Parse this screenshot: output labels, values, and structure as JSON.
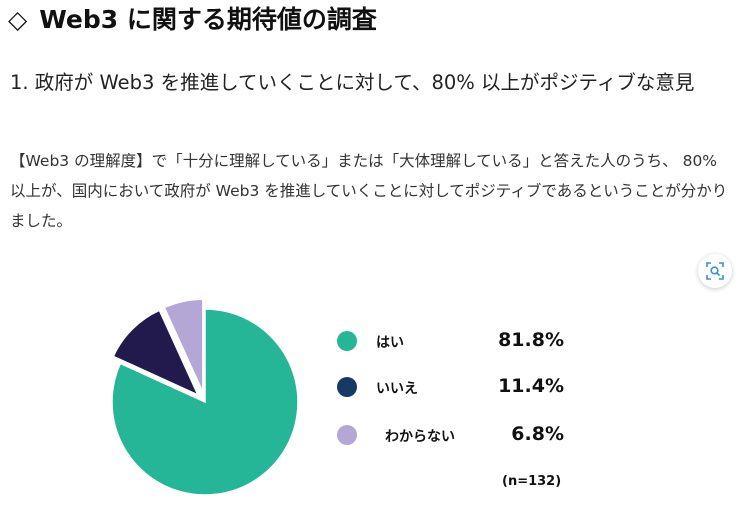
{
  "page": {
    "title": "Web3 に関する期待値の調査",
    "title_icon": "diamond-outline-icon",
    "heading": "1. 政府が Web3 を推進していくことに対して、80% 以上がポジティブな意見",
    "body": "【Web3 の理解度】で「十分に理解している」または「大体理解している」と答えた人のうち、 80% 以上が、国内において政府が Web3 を推進していくことに対してポジティブであるということが分かりました。",
    "zoom_icon": "zoom-search-icon"
  },
  "chart_data": {
    "type": "pie",
    "categories": [
      "はい",
      "いいえ",
      "わからない"
    ],
    "values": [
      81.8,
      11.4,
      6.8
    ],
    "value_labels": [
      "81.8%",
      "11.4%",
      "6.8%"
    ],
    "colors": [
      "#24B697",
      "#221A4C",
      "#B4A7D6"
    ],
    "legend_dot_colors": [
      "#24B697",
      "#173A64",
      "#B4A7D6"
    ],
    "note": "(n=132)",
    "legend_position": "right",
    "exploded_slices": [
      1,
      2
    ]
  }
}
